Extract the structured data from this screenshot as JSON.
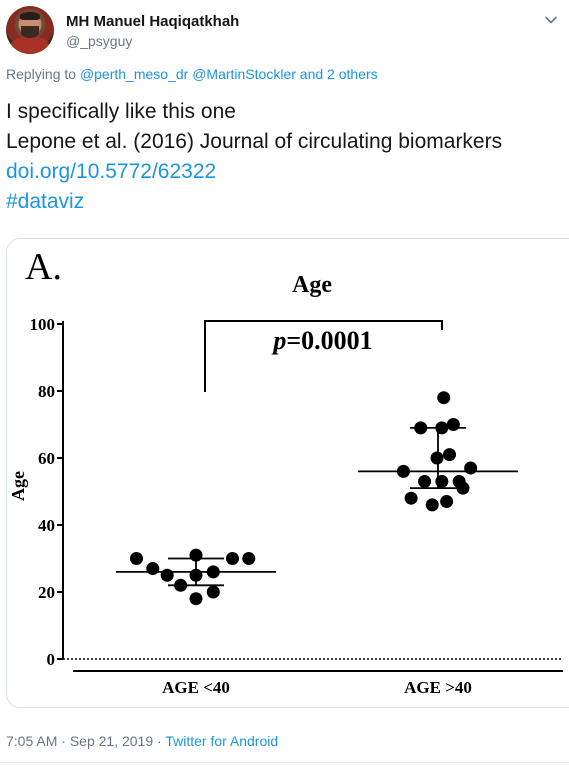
{
  "user": {
    "display_name": "MH Manuel Haqiqatkhah",
    "handle": "@_psyguy"
  },
  "reply": {
    "prefix": "Replying to",
    "mentions": [
      "@perth_meso_dr",
      "@MartinStockler"
    ],
    "others": "and 2 others"
  },
  "tweet": {
    "line1": "I specifically like this one",
    "line2": "Lepone et al. (2016) Journal of circulating biomarkers",
    "link": "doi.org/10.5772/62322",
    "hashtag": "#dataviz"
  },
  "footer": {
    "time": "7:05 AM",
    "separator": "·",
    "date": "Sep 21, 2019",
    "source": "Twitter for Android"
  },
  "icons": {
    "menu": "chevron-down-icon",
    "avatar": "profile-photo"
  },
  "colors": {
    "link_blue": "#1b95e0",
    "secondary_gray": "#657786"
  },
  "chart_data": {
    "type": "scatter",
    "panel_label": "A.",
    "title": "Age",
    "ylabel": "Age",
    "ylim": [
      0,
      100
    ],
    "yticks": [
      0,
      20,
      40,
      60,
      80,
      100
    ],
    "categories": [
      "AGE <40",
      "AGE >40"
    ],
    "annotation": {
      "italic": "p",
      "text": "=0.0001"
    },
    "groups": [
      {
        "category": "AGE <40",
        "mean": 26,
        "sd": [
          22,
          30
        ],
        "points": [
          [
            -0.62,
            30
          ],
          [
            -0.45,
            27
          ],
          [
            -0.3,
            25
          ],
          [
            -0.16,
            22
          ],
          [
            0.0,
            31
          ],
          [
            0.0,
            25
          ],
          [
            0.0,
            18
          ],
          [
            0.18,
            26
          ],
          [
            0.18,
            20
          ],
          [
            0.38,
            30
          ],
          [
            0.55,
            30
          ]
        ]
      },
      {
        "category": "AGE >40",
        "mean": 56,
        "sd": [
          51,
          69
        ],
        "points": [
          [
            -0.36,
            56
          ],
          [
            -0.28,
            48
          ],
          [
            -0.18,
            69
          ],
          [
            -0.14,
            53
          ],
          [
            -0.06,
            46
          ],
          [
            -0.01,
            60
          ],
          [
            0.04,
            69
          ],
          [
            0.04,
            53
          ],
          [
            0.09,
            47
          ],
          [
            0.12,
            61
          ],
          [
            0.16,
            70
          ],
          [
            0.22,
            53
          ],
          [
            0.26,
            51
          ],
          [
            0.34,
            57
          ],
          [
            0.06,
            78
          ]
        ]
      }
    ]
  }
}
